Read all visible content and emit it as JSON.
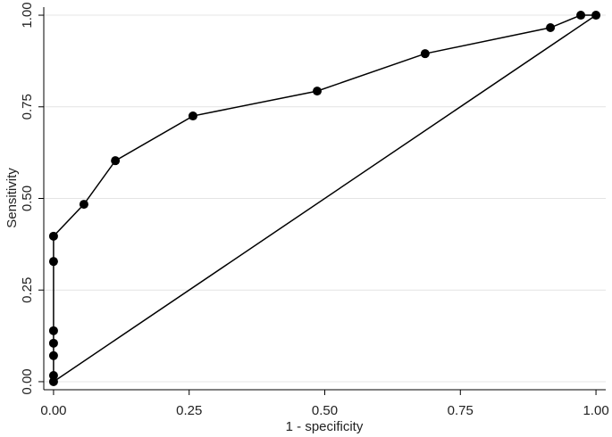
{
  "chart_data": {
    "type": "line",
    "x_label": "1 - specificity",
    "y_label": "Sensitivity",
    "xlim": [
      -0.018,
      1.018
    ],
    "ylim": [
      -0.022,
      1.022
    ],
    "xticks": [
      {
        "value": 0,
        "label": "0.00"
      },
      {
        "value": 0.25,
        "label": "0.25"
      },
      {
        "value": 0.5,
        "label": "0.50"
      },
      {
        "value": 0.75,
        "label": "0.75"
      },
      {
        "value": 1,
        "label": "1.00"
      }
    ],
    "yticks": [
      {
        "value": 0,
        "label": "0.00"
      },
      {
        "value": 0.25,
        "label": "0.25"
      },
      {
        "value": 0.5,
        "label": "0.50"
      },
      {
        "value": 0.75,
        "label": "0.75"
      },
      {
        "value": 1,
        "label": "1.00"
      }
    ],
    "grid": true,
    "series": [
      {
        "color": "#000000",
        "markers": true,
        "x": [
          0,
          0,
          0,
          0,
          0,
          0,
          0,
          0.056,
          0.114,
          0.257,
          0.486,
          0.685,
          0.916,
          0.972,
          1
        ],
        "values": [
          0,
          0.017,
          0.071,
          0.105,
          0.139,
          0.328,
          0.397,
          0.484,
          0.603,
          0.725,
          0.793,
          0.895,
          0.966,
          1,
          1
        ]
      },
      {
        "color": "#000000",
        "markers": false,
        "x": [
          0,
          1
        ],
        "values": [
          0,
          1
        ]
      }
    ]
  }
}
